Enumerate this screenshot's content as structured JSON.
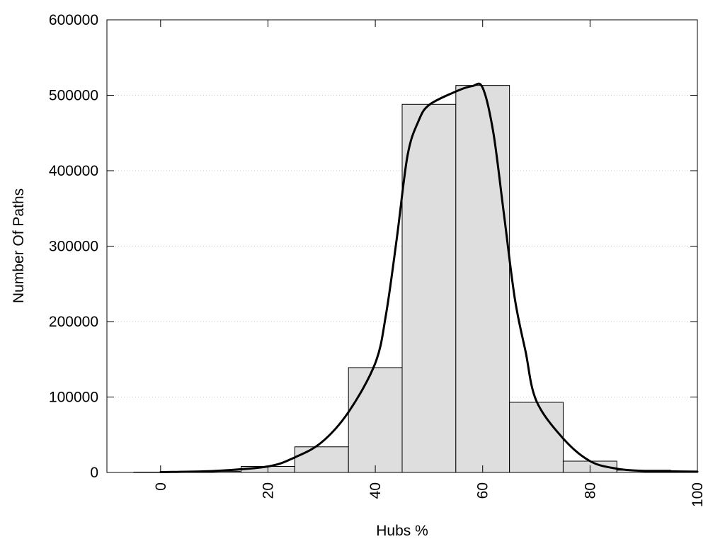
{
  "chart_data": {
    "type": "bar",
    "xlabel": "Hubs %",
    "ylabel": "Number Of Paths",
    "xlim": [
      -10,
      100
    ],
    "ylim": [
      0,
      600000
    ],
    "x_ticks": [
      0,
      20,
      40,
      60,
      80,
      100
    ],
    "y_ticks": [
      0,
      100000,
      200000,
      300000,
      400000,
      500000,
      600000
    ],
    "grid": "horizontal dotted",
    "bar_color": "#dedede",
    "bins": [
      {
        "start": -5,
        "end": 5,
        "value": 500
      },
      {
        "start": 5,
        "end": 15,
        "value": 1500
      },
      {
        "start": 15,
        "end": 25,
        "value": 8000
      },
      {
        "start": 25,
        "end": 35,
        "value": 34000
      },
      {
        "start": 35,
        "end": 45,
        "value": 139000
      },
      {
        "start": 45,
        "end": 55,
        "value": 488000
      },
      {
        "start": 55,
        "end": 65,
        "value": 513000
      },
      {
        "start": 65,
        "end": 75,
        "value": 93000
      },
      {
        "start": 75,
        "end": 85,
        "value": 15000
      },
      {
        "start": 85,
        "end": 95,
        "value": 3000
      }
    ],
    "series": [
      {
        "type": "line",
        "x": [
          0,
          10,
          20,
          25,
          30,
          35,
          40,
          42,
          44,
          46,
          48,
          50,
          55,
          58,
          60,
          62,
          64,
          66,
          68,
          70,
          75,
          80,
          85,
          90,
          95,
          100
        ],
        "y": [
          500,
          2000,
          8000,
          20000,
          40000,
          80000,
          145000,
          210000,
          310000,
          420000,
          465000,
          487000,
          505000,
          512000,
          510000,
          450000,
          340000,
          230000,
          160000,
          95000,
          45000,
          15000,
          5000,
          2000,
          1500,
          1000
        ]
      }
    ]
  }
}
